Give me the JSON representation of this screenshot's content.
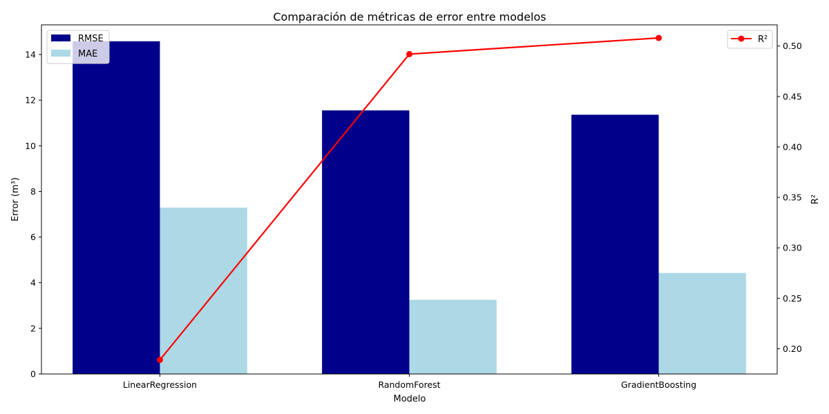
{
  "chart_data": {
    "type": "bar",
    "title": "Comparación de métricas de error entre modelos",
    "xlabel": "Modelo",
    "ylabel": "Error (m³)",
    "y2label": "R²",
    "categories": [
      "LinearRegression",
      "RandomForest",
      "GradientBoosting"
    ],
    "ylim": [
      0,
      15.3
    ],
    "yticks": [
      0,
      2,
      4,
      6,
      8,
      10,
      12,
      14
    ],
    "y2lim": [
      0.175,
      0.521
    ],
    "y2ticks": [
      0.2,
      0.25,
      0.3,
      0.35,
      0.4,
      0.45,
      0.5
    ],
    "grid": false,
    "series": [
      {
        "name": "RMSE",
        "type": "bar",
        "axis": "left",
        "color": "#00008b",
        "values": [
          14.58,
          11.55,
          11.36
        ]
      },
      {
        "name": "MAE",
        "type": "bar",
        "axis": "left",
        "color": "#add8e6",
        "values": [
          7.29,
          3.25,
          4.43
        ]
      },
      {
        "name": "R²",
        "type": "line",
        "axis": "right",
        "color": "#ff0000",
        "values": [
          0.189,
          0.492,
          0.508
        ]
      }
    ],
    "legend_bars_placement": "upper-left",
    "legend_line_placement": "upper-right"
  }
}
